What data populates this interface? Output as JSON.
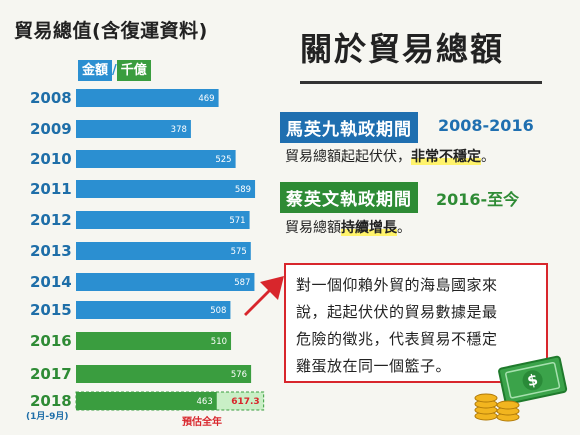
{
  "left_title": "貿易總值(含復運資料)",
  "unit": {
    "left": "金額",
    "sep": "/",
    "right": "千億"
  },
  "main_title": "關於貿易總額",
  "ma": {
    "badge": "馬英九執政期間",
    "years": "2008-2016",
    "desc_prefix": "貿易總額起起伏伏，",
    "desc_highlight": "非常不穩定",
    "desc_suffix": "。"
  },
  "tsai": {
    "badge": "蔡英文執政期間",
    "years": "2016-至今",
    "desc_prefix": "貿易總額",
    "desc_highlight": "持續增長",
    "desc_suffix": "。"
  },
  "callout": {
    "line1": "對一個仰賴外貿的海島國家來",
    "line2": "說，起起伏伏的貿易數據是最",
    "line3": "危險的徵兆，代表貿易不穩定",
    "line4": "雞蛋放在同一個籃子。"
  },
  "colors": {
    "ma_blue": "#2b8fd1",
    "tsai_green": "#3a9d3f",
    "alert_red": "#d8262c",
    "projection_fill": "#c9efc6"
  },
  "icons": [
    "arrow-icon",
    "money-icon"
  ],
  "chart_data": {
    "type": "bar",
    "orientation": "horizontal",
    "title": "貿易總值(含復運資料)",
    "unit": "金額/千億",
    "categories": [
      "2008",
      "2009",
      "2010",
      "2011",
      "2012",
      "2013",
      "2014",
      "2015",
      "2016",
      "2017",
      "2018"
    ],
    "values": [
      469,
      378,
      525,
      589,
      571,
      575,
      587,
      508,
      510,
      576,
      463
    ],
    "bar_colors": [
      "#2b8fd1",
      "#2b8fd1",
      "#2b8fd1",
      "#2b8fd1",
      "#2b8fd1",
      "#2b8fd1",
      "#2b8fd1",
      "#2b8fd1",
      "#3a9d3f",
      "#3a9d3f",
      "#3a9d3f"
    ],
    "category_notes": {
      "2018": "(1月-9月)"
    },
    "projection": {
      "category": "2018",
      "value": 617.3,
      "label": "預估全年"
    },
    "xlim": [
      0,
      650
    ],
    "grid": false,
    "legend": "none"
  }
}
